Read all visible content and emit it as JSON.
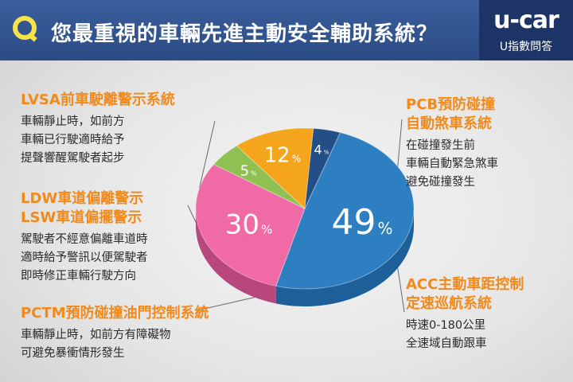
{
  "header": {
    "q_letter": "Q",
    "title": "您最重視的車輛先進主動安全輔助系統？",
    "brand_name": "u-car",
    "brand_tag": "U指數問答"
  },
  "features": [
    {
      "id": "pcb",
      "title_lines": [
        "PCB預防碰撞",
        "自動煞車系統"
      ],
      "desc_lines": [
        "在碰撞發生前",
        "車輛自動緊急煞車",
        "避免碰撞發生"
      ]
    },
    {
      "id": "acc",
      "title_lines": [
        "ACC主動車距控制",
        "定速巡航系統"
      ],
      "desc_lines": [
        "時速0-180公里",
        "全速域自動跟車"
      ]
    },
    {
      "id": "pctm",
      "title_lines": [
        "PCTM預防碰撞油門控制系統"
      ],
      "desc_lines": [
        "車輛靜止時，如前方有障礙物",
        "可避免暴衝情形發生"
      ]
    },
    {
      "id": "ldw",
      "title_lines": [
        "LDW車道偏離警示",
        "LSW車道偏擺警示"
      ],
      "desc_lines": [
        "駕駛者不經意偏離車道時",
        "適時給予警訊以便駕駛者",
        "即時修正車輛行駛方向"
      ]
    },
    {
      "id": "lvsa",
      "title_lines": [
        "LVSA前車駛離警示系統"
      ],
      "desc_lines": [
        "車輛靜止時，如前方",
        "車輛已行駛適時給予",
        "提聲響醒駕駛者起步"
      ]
    }
  ],
  "chart_data": {
    "type": "pie",
    "title": "您最重視的車輛先進主動安全輔助系統？",
    "categories": [
      "PCB預防碰撞自動煞車系統",
      "ACC主動車距控制定速巡航系統",
      "PCTM預防碰撞油門控制系統",
      "LDW車道偏離警示 LSW車道偏擺警示",
      "LVSA前車駛離警示系統"
    ],
    "values": [
      49,
      30,
      5,
      12,
      4
    ],
    "labels": [
      "49",
      "30",
      "5",
      "12",
      "4"
    ],
    "unit": "%",
    "colors": [
      "#2e7fc2",
      "#f06aa6",
      "#8fc152",
      "#f4a51c",
      "#234e86"
    ],
    "side_colors": [
      "#1d5f98",
      "#b7477c",
      "#6b9a3a",
      "#c27f10",
      "#163a68"
    ],
    "style": "3d-tilted"
  }
}
